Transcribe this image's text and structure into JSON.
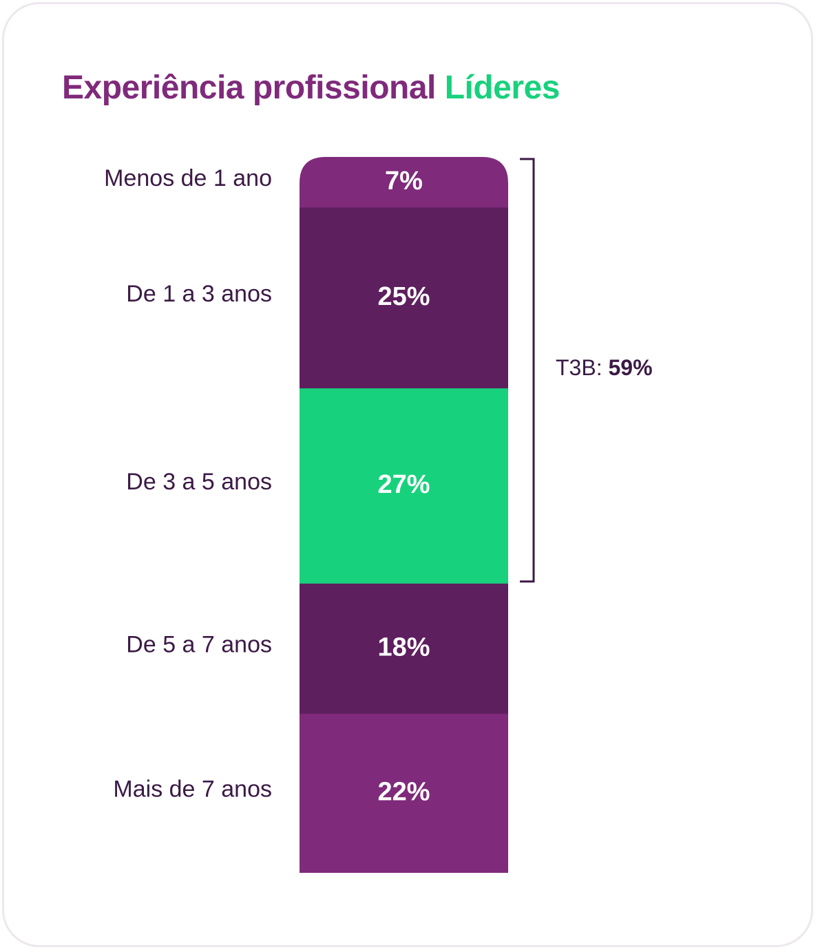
{
  "title": {
    "part1": "Experiência profissional",
    "part2": "Líderes"
  },
  "colors": {
    "purple": "#7f2a7b",
    "dark_purple": "#5e1f5e",
    "green": "#18d17d",
    "bracket": "#3b1a45"
  },
  "chart_data": {
    "type": "bar",
    "stacked": true,
    "orientation": "vertical",
    "title": "Experiência profissional Líderes",
    "categories": [
      "Menos de 1 ano",
      "De 1 a 3 anos",
      "De 3 a 5 anos",
      "De 5 a 7 anos",
      "Mais de 7 anos"
    ],
    "values": [
      7,
      25,
      27,
      18,
      22
    ],
    "value_labels": [
      "7%",
      "25%",
      "27%",
      "18%",
      "22%"
    ],
    "segment_colors": [
      "#7f2a7b",
      "#5e1f5e",
      "#18d17d",
      "#5e1f5e",
      "#7f2a7b"
    ],
    "annotation": {
      "label": "T3B:",
      "value": "59%",
      "covers": [
        "Menos de 1 ano",
        "De 1 a 3 anos",
        "De 3 a 5 anos"
      ]
    }
  }
}
